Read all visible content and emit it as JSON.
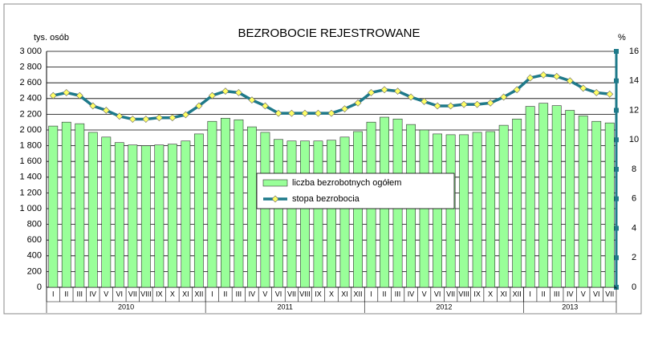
{
  "chart_data": {
    "type": "bar",
    "title": "BEZROBOCIE REJESTROWANE",
    "y_label": "tys. osób",
    "y2_label": "%",
    "year_groups": [
      {
        "label": "2010",
        "months": [
          "I",
          "II",
          "III",
          "IV",
          "V",
          "VI",
          "VII",
          "VIII",
          "IX",
          "X",
          "XI",
          "XII"
        ]
      },
      {
        "label": "2011",
        "months": [
          "I",
          "II",
          "III",
          "IV",
          "V",
          "VI",
          "VII",
          "VIII",
          "IX",
          "X",
          "XI",
          "XII"
        ]
      },
      {
        "label": "2012",
        "months": [
          "I",
          "II",
          "III",
          "IV",
          "V",
          "VI",
          "VII",
          "VIII",
          "IX",
          "X",
          "XI",
          "XII"
        ]
      },
      {
        "label": "2013",
        "months": [
          "I",
          "II",
          "III",
          "IV",
          "V",
          "VI",
          "VII"
        ]
      }
    ],
    "series": [
      {
        "name": "liczba bezrobotnych ogółem",
        "type": "bar",
        "color": "#99ff99",
        "values": [
          2050,
          2100,
          2080,
          1970,
          1910,
          1840,
          1810,
          1800,
          1810,
          1820,
          1860,
          1950,
          2110,
          2150,
          2130,
          2040,
          1970,
          1880,
          1860,
          1860,
          1860,
          1870,
          1910,
          1980,
          2100,
          2163,
          2140,
          2070,
          2000,
          1950,
          1940,
          1940,
          1970,
          1980,
          2060,
          2140,
          2300,
          2340,
          2310,
          2250,
          2180,
          2110,
          2090
        ]
      },
      {
        "name": "stopa bezrobocia",
        "type": "line",
        "axis": "y2",
        "color": "#1f7a8a",
        "marker_color": "#ffff66",
        "values": [
          13.0,
          13.2,
          13.0,
          12.3,
          12.0,
          11.6,
          11.4,
          11.4,
          11.5,
          11.5,
          11.7,
          12.3,
          13.0,
          13.3,
          13.2,
          12.7,
          12.3,
          11.8,
          11.8,
          11.8,
          11.8,
          11.8,
          12.1,
          12.5,
          13.2,
          13.4,
          13.3,
          12.9,
          12.6,
          12.3,
          12.3,
          12.4,
          12.4,
          12.5,
          12.9,
          13.4,
          14.2,
          14.4,
          14.3,
          14.0,
          13.5,
          13.2,
          13.1
        ]
      }
    ],
    "ylim": [
      0,
      3000
    ],
    "yticks": [
      0,
      200,
      400,
      600,
      800,
      {
        "value": 1000,
        "label": "1 000"
      },
      {
        "value": 1200,
        "label": "1 200"
      },
      {
        "value": 1400,
        "label": "1 400"
      },
      {
        "value": 1600,
        "label": "1 600"
      },
      {
        "value": 1800,
        "label": "1 800"
      },
      {
        "value": 2000,
        "label": "2 000"
      },
      {
        "value": 2200,
        "label": "2 200"
      },
      {
        "value": 2400,
        "label": "2 400"
      },
      {
        "value": 2600,
        "label": "2 600"
      },
      {
        "value": 2800,
        "label": "2 800"
      },
      {
        "value": 3000,
        "label": "3 000"
      }
    ],
    "y2lim": [
      0,
      16
    ],
    "y2ticks": [
      0,
      2,
      4,
      6,
      8,
      10,
      12,
      14,
      16
    ],
    "grid": true,
    "legend": "center"
  }
}
